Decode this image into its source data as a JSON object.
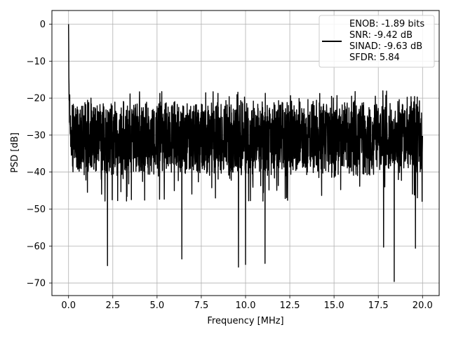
{
  "chart_data": {
    "type": "line",
    "xlabel": "Frequency [MHz]",
    "ylabel": "PSD [dB]",
    "xlim": [
      -0.94,
      20.94
    ],
    "ylim": [
      -73.4,
      3.7
    ],
    "xticks": [
      0.0,
      2.5,
      5.0,
      7.5,
      10.0,
      12.5,
      15.0,
      17.5,
      20.0
    ],
    "xtick_labels": [
      "0.0",
      "2.5",
      "5.0",
      "7.5",
      "10.0",
      "12.5",
      "15.0",
      "17.5",
      "20.0"
    ],
    "yticks": [
      0,
      -10,
      -20,
      -30,
      -40,
      -50,
      -60,
      -70
    ],
    "ytick_labels": [
      "0",
      "−10",
      "−20",
      "−30",
      "−40",
      "−50",
      "−60",
      "−70"
    ],
    "grid": true,
    "legend_position": "top-right",
    "series": [
      {
        "name": "ENOB: -1.89 bits\nSNR: -9.42 dB\nSINAD: -9.63 dB\nSFDR: 5.84",
        "color": "#000000",
        "approximate": true,
        "x_range": [
          0.0,
          20.0
        ],
        "peak": {
          "x": 0.0,
          "y": 0.0
        },
        "noise_floor_mean": -31,
        "noise_band": [
          -38,
          -22
        ],
        "deep_dips": [
          {
            "x": 2.2,
            "y": -65.3
          },
          {
            "x": 6.4,
            "y": -63.5
          },
          {
            "x": 9.6,
            "y": -65.7
          },
          {
            "x": 10.0,
            "y": -65.0
          },
          {
            "x": 11.1,
            "y": -64.7
          },
          {
            "x": 17.8,
            "y": -60.3
          },
          {
            "x": 18.4,
            "y": -69.6
          },
          {
            "x": 19.6,
            "y": -60.6
          }
        ]
      }
    ]
  },
  "legend": {
    "lines": [
      "ENOB: -1.89 bits",
      "SNR: -9.42 dB",
      "SINAD: -9.63 dB",
      "SFDR: 5.84"
    ]
  }
}
